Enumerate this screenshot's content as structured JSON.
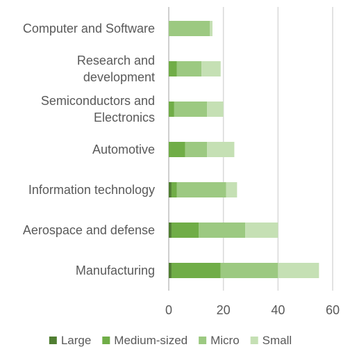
{
  "chart_data": {
    "type": "bar",
    "orientation": "horizontal",
    "stacked": true,
    "categories": [
      "Computer and Software",
      "Research and development",
      "Semiconductors and Electronics",
      "Automotive",
      "Information technology",
      "Aerospace and defense",
      "Manufacturing"
    ],
    "category_lines": [
      [
        "Computer and Software"
      ],
      [
        "Research and",
        "development"
      ],
      [
        "Semiconductors and",
        "Electronics"
      ],
      [
        "Automotive"
      ],
      [
        "Information technology"
      ],
      [
        "Aerospace and defense"
      ],
      [
        "Manufacturing"
      ]
    ],
    "series": [
      {
        "name": "Large",
        "color": "#507e32",
        "values": [
          0,
          0,
          0,
          0,
          1,
          1,
          1
        ]
      },
      {
        "name": "Medium-sized",
        "color": "#70ad47",
        "values": [
          0,
          3,
          2,
          6,
          2,
          10,
          18
        ]
      },
      {
        "name": "Micro",
        "color": "#9cc981",
        "values": [
          15,
          9,
          12,
          8,
          18,
          17,
          21
        ]
      },
      {
        "name": "Small",
        "color": "#c5e0b4",
        "values": [
          1,
          7,
          6,
          10,
          4,
          12,
          15
        ]
      }
    ],
    "xlim": [
      0,
      60
    ],
    "xticks": [
      "0",
      "20",
      "40",
      "60"
    ],
    "grid": true,
    "legend_position": "bottom",
    "title": "",
    "xlabel": "",
    "ylabel": ""
  }
}
